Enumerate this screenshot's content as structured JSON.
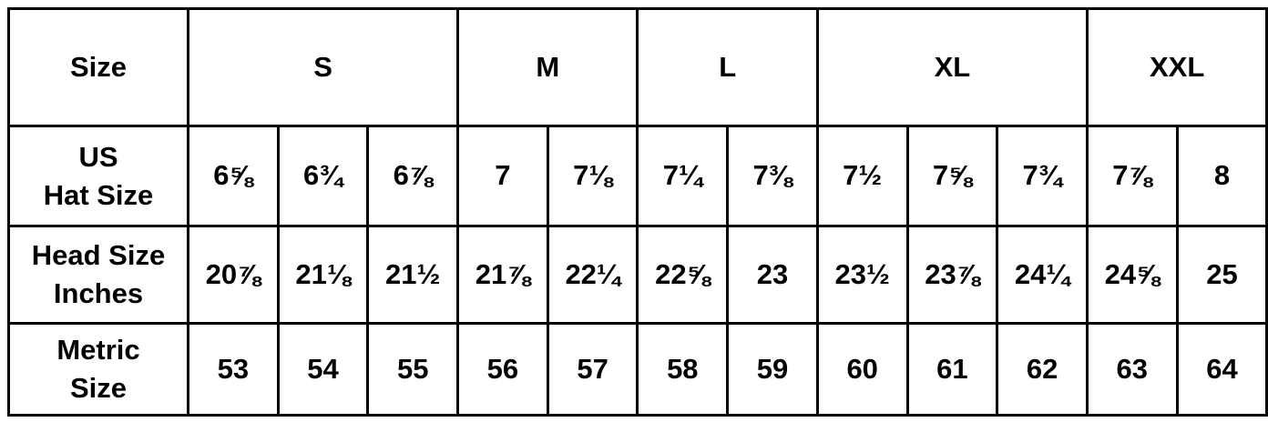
{
  "header": {
    "label": "Size",
    "groups": [
      {
        "label": "S",
        "span": 3
      },
      {
        "label": "M",
        "span": 2
      },
      {
        "label": "L",
        "span": 2
      },
      {
        "label": "XL",
        "span": 3
      },
      {
        "label": "XXL",
        "span": 2
      }
    ]
  },
  "rows": [
    {
      "label": "US\nHat Size",
      "values": [
        "6⅝",
        "6¾",
        "6⅞",
        "7",
        "7⅛",
        "7¼",
        "7⅜",
        "7½",
        "7⅝",
        "7¾",
        "7⅞",
        "8"
      ]
    },
    {
      "label": "Head Size\nInches",
      "values": [
        "20⅞",
        "21⅛",
        "21½",
        "21⅞",
        "22¼",
        "22⅝",
        "23",
        "23½",
        "23⅞",
        "24¼",
        "24⅝",
        "25"
      ]
    },
    {
      "label": "Metric\nSize",
      "values": [
        "53",
        "54",
        "55",
        "56",
        "57",
        "58",
        "59",
        "60",
        "61",
        "62",
        "63",
        "64"
      ]
    }
  ]
}
